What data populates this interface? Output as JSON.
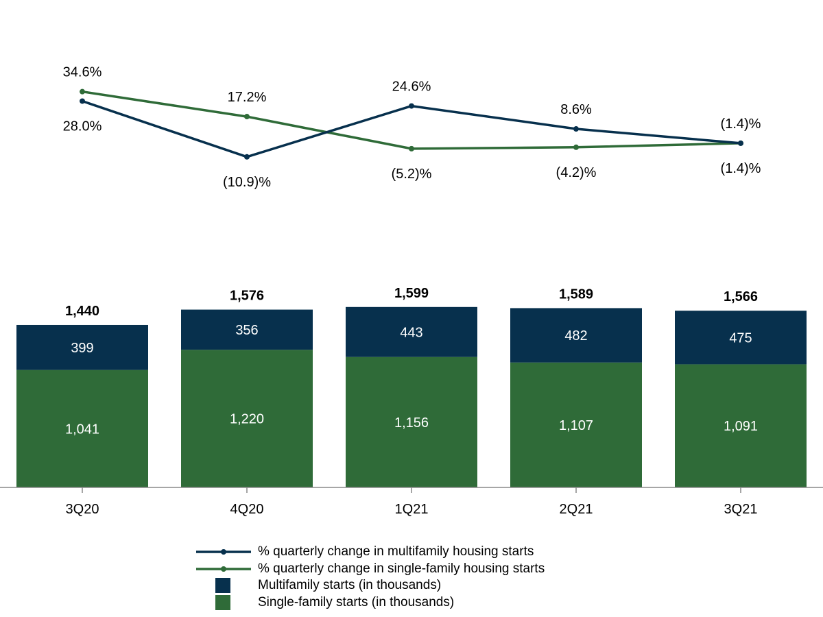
{
  "colors": {
    "multifamily": "#07304d",
    "single_family": "#2f6b38",
    "axis": "#888888",
    "text": "#000000",
    "bar_text": "#ffffff"
  },
  "chart_data": {
    "type": "bar",
    "stacked": true,
    "categories": [
      "3Q20",
      "4Q20",
      "1Q21",
      "2Q21",
      "3Q21"
    ],
    "series": [
      {
        "name": "Single-family starts (in thousands)",
        "key": "single_family",
        "values": [
          1041,
          1220,
          1156,
          1107,
          1091
        ],
        "labels": [
          "1,041",
          "1,220",
          "1,156",
          "1,107",
          "1,091"
        ]
      },
      {
        "name": "Multifamily starts (in thousands)",
        "key": "multifamily",
        "values": [
          399,
          356,
          443,
          482,
          475
        ],
        "labels": [
          "399",
          "356",
          "443",
          "482",
          "475"
        ]
      }
    ],
    "totals": [
      1440,
      1576,
      1599,
      1589,
      1566
    ],
    "total_labels": [
      "1,440",
      "1,576",
      "1,599",
      "1,589",
      "1,566"
    ],
    "ylim": [
      0,
      1650
    ],
    "lines": [
      {
        "name": "% quarterly change in multifamily housing starts",
        "key": "multifamily",
        "values": [
          28.0,
          -10.9,
          24.6,
          8.6,
          -1.4
        ],
        "labels": [
          "28.0%",
          "(10.9)%",
          "24.6%",
          "8.6%",
          "(1.4)%"
        ]
      },
      {
        "name": "% quarterly change in single-family housing starts",
        "key": "single_family",
        "values": [
          34.6,
          17.2,
          -5.2,
          -4.2,
          -1.4
        ],
        "labels": [
          "34.6%",
          "17.2%",
          "(5.2)%",
          "(4.2)%",
          "(1.4)%"
        ]
      }
    ],
    "line_ylim": [
      -15,
      40
    ],
    "legend_position": "bottom-center",
    "grid": false
  },
  "legend": [
    {
      "type": "line",
      "key": "multifamily",
      "label": "% quarterly change in multifamily housing starts"
    },
    {
      "type": "line",
      "key": "single_family",
      "label": "% quarterly change in single-family housing starts"
    },
    {
      "type": "box",
      "key": "multifamily",
      "label": "Multifamily starts (in thousands)"
    },
    {
      "type": "box",
      "key": "single_family",
      "label": "Single-family starts (in thousands)"
    }
  ]
}
